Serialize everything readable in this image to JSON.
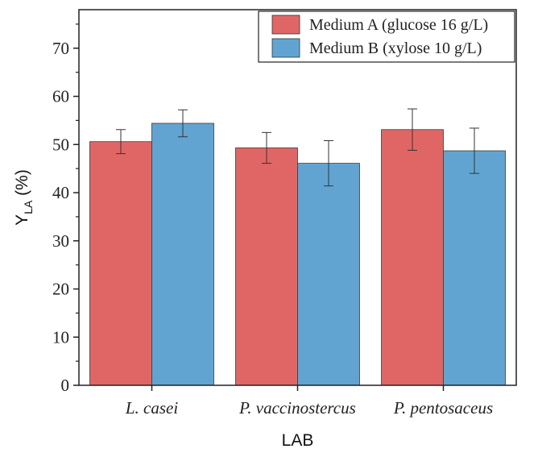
{
  "chart_data": {
    "type": "bar",
    "categories": [
      "L. casei",
      "P. vaccinostercus",
      "P. pentosaceus"
    ],
    "series": [
      {
        "name": "Medium A (glucose 16 g/L)",
        "color": "#e06666",
        "values": [
          50.6,
          49.3,
          53.1
        ],
        "errors": [
          2.5,
          3.2,
          4.3
        ]
      },
      {
        "name": "Medium B (xylose 10 g/L)",
        "color": "#62a4d1",
        "values": [
          54.4,
          46.1,
          48.7
        ],
        "errors": [
          2.8,
          4.7,
          4.7
        ]
      }
    ],
    "ylim": [
      0,
      78
    ],
    "yticks": [
      0,
      10,
      20,
      30,
      40,
      50,
      60,
      70
    ],
    "xlabel": "LAB",
    "ylabel_main": "Y",
    "ylabel_sub": "LA",
    "ylabel_suffix": " (%)",
    "legend_position": "top-right",
    "grid": false
  }
}
